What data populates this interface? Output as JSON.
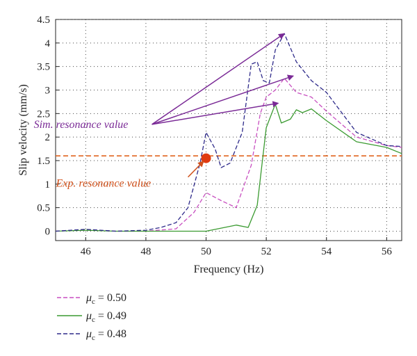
{
  "chart_data": {
    "type": "line",
    "xlabel": "Frequency (Hz)",
    "ylabel": "Slip velocity (mm/s)",
    "xlim": [
      45,
      56.5
    ],
    "ylim": [
      -0.2,
      4.5
    ],
    "x_ticks": [
      "46",
      "48",
      "50",
      "52",
      "54",
      "56"
    ],
    "y_ticks": [
      "0",
      "0.5",
      "1",
      "1.5",
      "2",
      "2.5",
      "3",
      "3.5",
      "4",
      "4.5"
    ],
    "grid": true,
    "legend_placement": "below",
    "series": [
      {
        "legend_symbol": "μ",
        "legend_sub": "c",
        "legend_value": " = 0.50",
        "color": "#c84fc0",
        "style": "dashed",
        "x": [
          45,
          46,
          47,
          48,
          49,
          49.6,
          50,
          50.5,
          51,
          51.5,
          51.8,
          52,
          52.3,
          52.6,
          53,
          53.5,
          54,
          55,
          56,
          56.5
        ],
        "y": [
          0,
          0.03,
          0,
          0,
          0.05,
          0.4,
          0.82,
          0.65,
          0.5,
          1.4,
          2.5,
          2.85,
          3.0,
          3.25,
          2.95,
          2.85,
          2.55,
          2.0,
          1.82,
          1.78
        ]
      },
      {
        "legend_symbol": "μ",
        "legend_sub": "c",
        "legend_value": " = 0.49",
        "color": "#3a9a30",
        "style": "solid",
        "x": [
          45,
          46,
          47,
          48,
          49,
          50,
          51,
          51.4,
          51.7,
          52,
          52.3,
          52.5,
          52.8,
          53,
          53.2,
          53.5,
          54,
          55,
          56,
          56.5
        ],
        "y": [
          0,
          0.02,
          0,
          0,
          0,
          0,
          0.13,
          0.08,
          0.55,
          2.2,
          2.7,
          2.3,
          2.38,
          2.58,
          2.52,
          2.6,
          2.35,
          1.9,
          1.78,
          1.65
        ]
      },
      {
        "legend_symbol": "μ",
        "legend_sub": "c",
        "legend_value": " = 0.48",
        "color": "#2e2a8a",
        "style": "dashed",
        "x": [
          45,
          46,
          47,
          48,
          48.5,
          49,
          49.4,
          49.8,
          50,
          50.3,
          50.5,
          50.8,
          51.2,
          51.5,
          51.7,
          51.9,
          52.1,
          52.3,
          52.6,
          53,
          53.5,
          54,
          55,
          56,
          56.5
        ],
        "y": [
          0,
          0.04,
          0,
          0.02,
          0.08,
          0.18,
          0.5,
          1.45,
          2.1,
          1.75,
          1.35,
          1.45,
          2.1,
          3.55,
          3.6,
          3.2,
          3.15,
          3.85,
          4.2,
          3.6,
          3.2,
          2.95,
          2.1,
          1.82,
          1.8
        ]
      }
    ],
    "reference_line": {
      "y": 1.6,
      "color": "#e0641e",
      "style": "dashed"
    },
    "experiment_point": {
      "x": 50,
      "y": 1.55,
      "color": "#e03a10"
    },
    "annotations": [
      {
        "text": "Sim. resonance value",
        "color": "#7a2a96",
        "from": {
          "x": 48.2,
          "y": 2.27
        },
        "targets": [
          {
            "x": 52.6,
            "y": 4.2
          },
          {
            "x": 52.9,
            "y": 3.3
          },
          {
            "x": 52.4,
            "y": 2.72
          }
        ]
      },
      {
        "text": "Exp. resonance value",
        "color": "#d0501a",
        "from": {
          "x": 49.4,
          "y": 1.15
        },
        "targets": [
          {
            "x": 49.92,
            "y": 1.49
          }
        ]
      }
    ]
  }
}
